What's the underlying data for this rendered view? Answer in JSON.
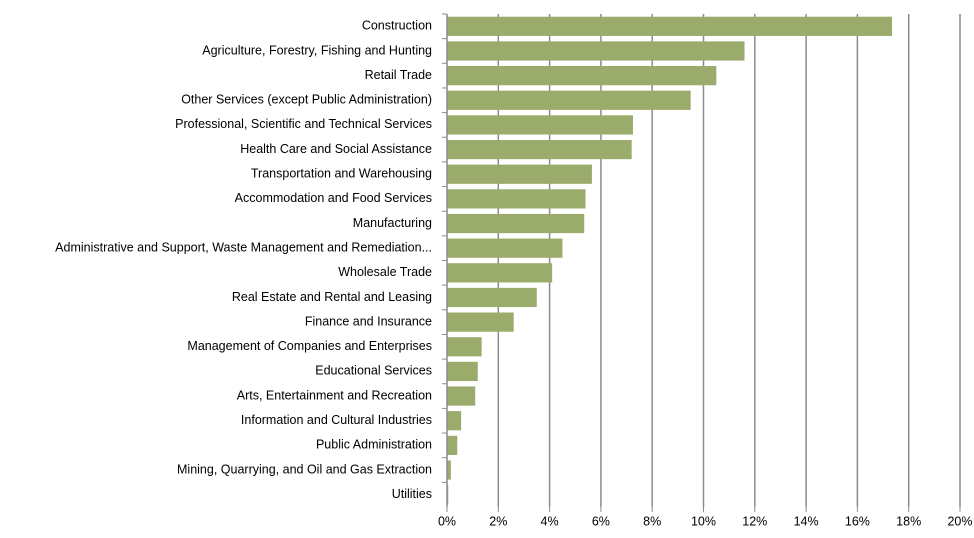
{
  "chart_data": {
    "type": "barh",
    "categories": [
      "Construction",
      "Agriculture, Forestry, Fishing and Hunting",
      "Retail Trade",
      "Other Services (except Public Administration)",
      "Professional, Scientific and Technical Services",
      "Health Care and Social Assistance",
      "Transportation and Warehousing",
      "Accommodation and Food Services",
      "Manufacturing",
      "Administrative and Support, Waste Management and Remediation...",
      "Wholesale Trade",
      "Real Estate and Rental and Leasing",
      "Finance and Insurance",
      "Management of Companies and Enterprises",
      "Educational Services",
      "Arts, Entertainment and Recreation",
      "Information and Cultural Industries",
      "Public Administration",
      "Mining, Quarrying, and Oil and Gas Extraction",
      "Utilities"
    ],
    "values": [
      17.35,
      11.6,
      10.5,
      9.5,
      7.25,
      7.2,
      5.65,
      5.4,
      5.35,
      4.5,
      4.1,
      3.5,
      2.6,
      1.35,
      1.2,
      1.1,
      0.55,
      0.4,
      0.15,
      0.05
    ],
    "color": "#9bab6b",
    "xlim": [
      0,
      20
    ],
    "xticks": [
      {
        "value": 0,
        "label": "0%"
      },
      {
        "value": 2,
        "label": "2%"
      },
      {
        "value": 4,
        "label": "4%"
      },
      {
        "value": 6,
        "label": "6%"
      },
      {
        "value": 8,
        "label": "8%"
      },
      {
        "value": 10,
        "label": "10%"
      },
      {
        "value": 12,
        "label": "12%"
      },
      {
        "value": 14,
        "label": "14%"
      },
      {
        "value": 16,
        "label": "16%"
      },
      {
        "value": 18,
        "label": "18%"
      },
      {
        "value": 20,
        "label": "20%"
      }
    ],
    "grid": true
  }
}
